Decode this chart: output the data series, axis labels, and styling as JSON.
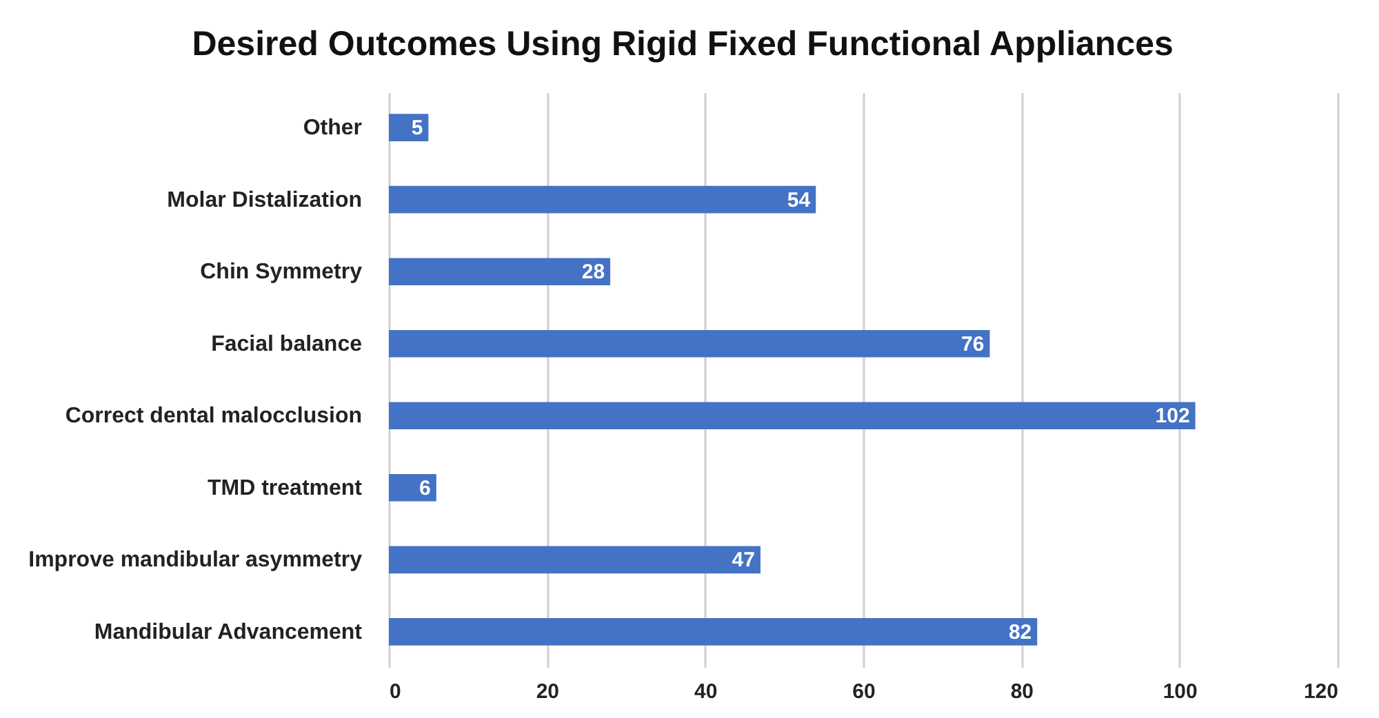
{
  "chart_data": {
    "type": "bar",
    "orientation": "horizontal",
    "title": "Desired Outcomes Using Rigid Fixed Functional Appliances",
    "categories": [
      "Other",
      "Molar Distalization",
      "Chin Symmetry",
      "Facial balance",
      "Correct dental malocclusion",
      "TMD treatment",
      "Improve mandibular asymmetry",
      "Mandibular Advancement"
    ],
    "values": [
      5,
      54,
      28,
      76,
      102,
      6,
      47,
      82
    ],
    "color": "#4472c4",
    "xlim": [
      0,
      120
    ],
    "xticks": [
      0,
      20,
      40,
      60,
      80,
      100,
      120
    ],
    "grid": "x",
    "data_labels": true
  }
}
